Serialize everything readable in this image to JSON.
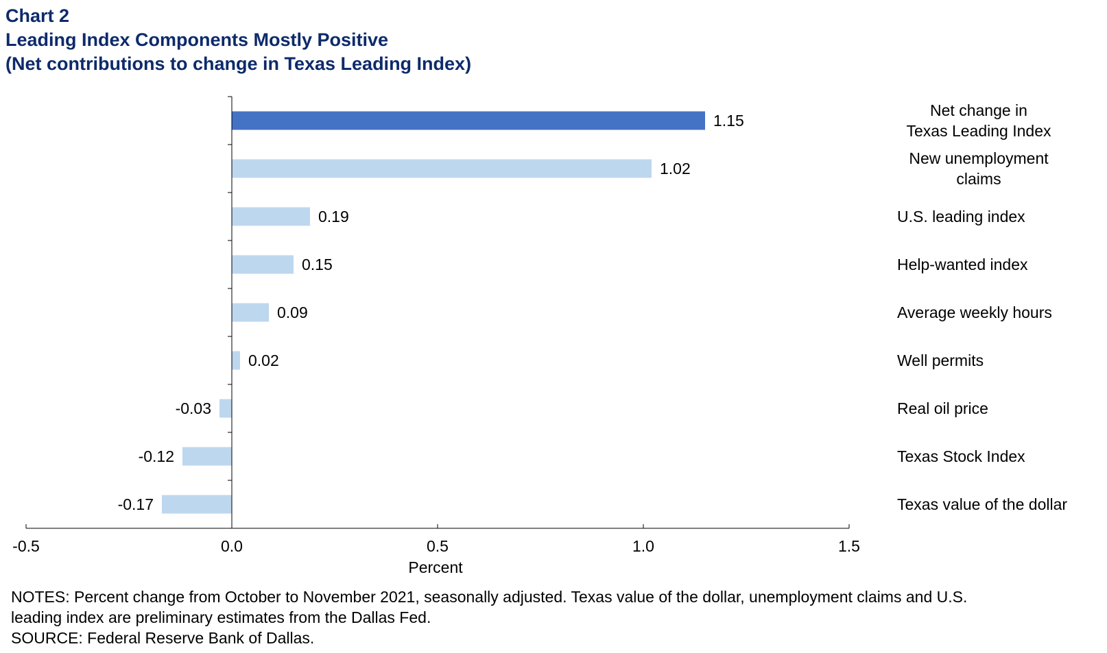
{
  "header": {
    "chart_number": "Chart 2",
    "title": "Leading Index Components Mostly Positive",
    "subtitle": "(Net contributions to change in Texas Leading Index)"
  },
  "chart_data": {
    "type": "bar",
    "orientation": "horizontal",
    "categories": [
      [
        "Net change in",
        "Texas Leading Index"
      ],
      [
        "New unemployment",
        "claims"
      ],
      [
        "U.S. leading index"
      ],
      [
        "Help-wanted index"
      ],
      [
        "Average weekly hours"
      ],
      [
        "Well permits"
      ],
      [
        "Real oil price"
      ],
      [
        "Texas Stock Index"
      ],
      [
        "Texas value of the dollar"
      ]
    ],
    "values": [
      1.15,
      1.02,
      0.19,
      0.15,
      0.09,
      0.02,
      -0.03,
      -0.12,
      -0.17
    ],
    "data_labels": [
      "1.15",
      "1.02",
      "0.19",
      "0.15",
      "0.09",
      "0.02",
      "-0.03",
      "-0.12",
      "-0.17"
    ],
    "xlim": [
      -0.5,
      1.5
    ],
    "x_ticks": [
      -0.5,
      0.0,
      0.5,
      1.0,
      1.5
    ],
    "x_tick_labels": [
      "-0.5",
      "0.0",
      "0.5",
      "1.0",
      "1.5"
    ],
    "xlabel": "Percent",
    "ylabel": "",
    "grid": false,
    "legend": "none",
    "colors": {
      "highlight": "#4472c4",
      "bar": "#bdd7ee",
      "title": "#0d2a6b",
      "axis": "#000000"
    }
  },
  "notes": {
    "line1": "NOTES: Percent change from October to November 2021, seasonally adjusted. Texas value of the dollar, unemployment claims and U.S.",
    "line2": "leading index are preliminary estimates from the Dallas Fed.",
    "source": "SOURCE: Federal Reserve Bank of Dallas."
  }
}
